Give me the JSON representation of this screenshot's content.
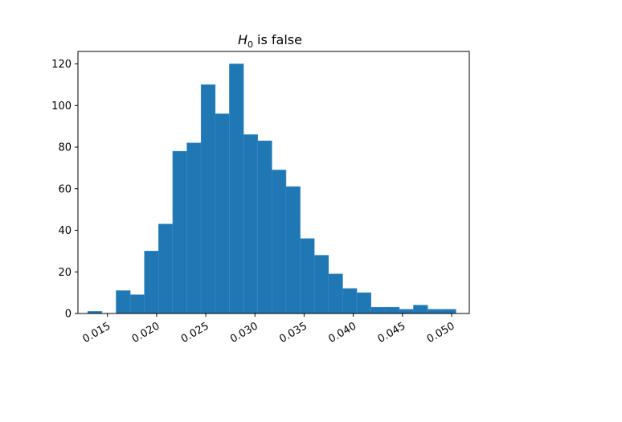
{
  "chart_data": {
    "type": "bar",
    "title": "is false",
    "title_symbol": "H",
    "title_subscript": "0",
    "xlabel": "",
    "ylabel": "",
    "bin_start": 0.013,
    "bin_width": 0.00144,
    "values": [
      1,
      0,
      11,
      9,
      30,
      43,
      78,
      82,
      110,
      96,
      120,
      86,
      83,
      69,
      61,
      36,
      28,
      19,
      12,
      10,
      3,
      3,
      2,
      4,
      2,
      2
    ],
    "xlim": [
      0.012,
      0.0518
    ],
    "ylim": [
      0,
      126
    ],
    "x_ticks": [
      0.015,
      0.02,
      0.025,
      0.03,
      0.035,
      0.04,
      0.045,
      0.05
    ],
    "x_tick_labels": [
      "0.015",
      "0.020",
      "0.025",
      "0.030",
      "0.035",
      "0.040",
      "0.045",
      "0.050"
    ],
    "y_ticks": [
      0,
      20,
      40,
      60,
      80,
      100,
      120
    ],
    "y_tick_labels": [
      "0",
      "20",
      "40",
      "60",
      "80",
      "100",
      "120"
    ],
    "x_tick_label_rotation_deg": -30,
    "grid": false,
    "legend": "none",
    "bar_color": "#1f77b4",
    "bar_edge_color": "#3d8bc4"
  }
}
